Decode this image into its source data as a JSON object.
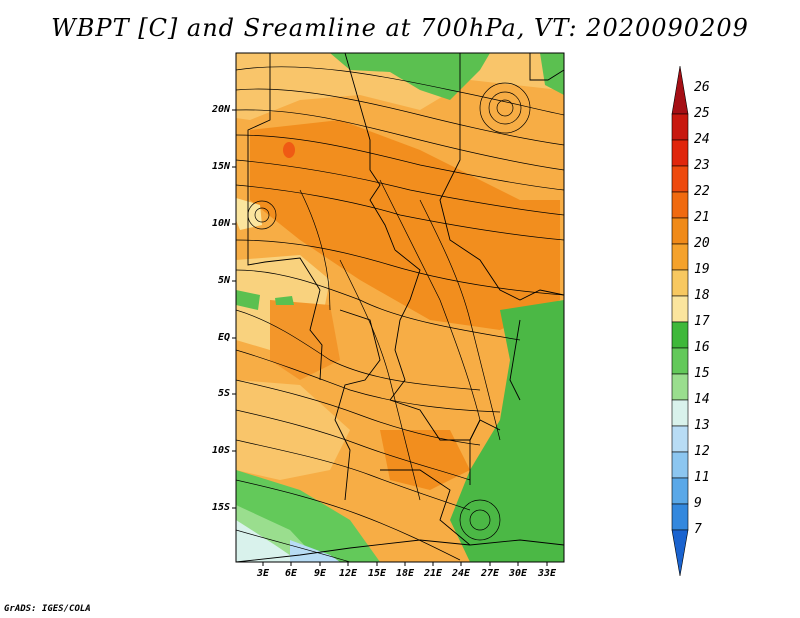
{
  "title": "WBPT [C] and Sreamline at 700hPa, VT: 2020090209",
  "lat_labels": [
    "20N",
    "15N",
    "10N",
    "5N",
    "EQ",
    "5S",
    "10S",
    "15S"
  ],
  "lon_labels": [
    "3E",
    "6E",
    "9E",
    "12E",
    "15E",
    "18E",
    "21E",
    "24E",
    "27E",
    "30E",
    "33E"
  ],
  "colorbar": {
    "labels": [
      "26",
      "25",
      "24",
      "23",
      "22",
      "21",
      "20",
      "19",
      "18",
      "17",
      "16",
      "15",
      "14",
      "13",
      "12",
      "11",
      "9",
      "7"
    ],
    "colors": [
      "#a50f15",
      "#c8180f",
      "#e0260c",
      "#ee4a0e",
      "#f06a10",
      "#f08a18",
      "#f5a22c",
      "#f8c860",
      "#fbe59e",
      "#3fb83a",
      "#63c95a",
      "#9ade8e",
      "#d9f2ec",
      "#b8dcf5",
      "#8cc6f0",
      "#5aa8e8",
      "#3388de",
      "#1a63cf"
    ]
  },
  "credit": "GrADS: IGES/COLA"
}
